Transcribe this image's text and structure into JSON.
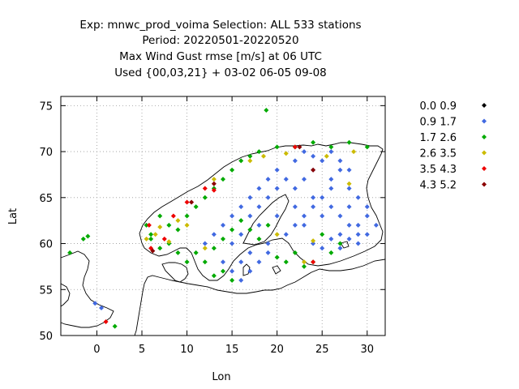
{
  "chart_data": {
    "type": "scatter",
    "title_lines": [
      "Exp: mnwc_prod_voima   Selection: ALL    533 stations",
      "Period: 20220501-20220520",
      "Max Wind Gust rmse [m/s] at  06 UTC",
      "Used {00,03,21} + 03-02 06-05 09-08"
    ],
    "xlabel": "Lon",
    "ylabel": "Lat",
    "xlim": [
      -4,
      32
    ],
    "ylim": [
      50,
      76
    ],
    "xticks": [
      0,
      5,
      10,
      15,
      20,
      25,
      30
    ],
    "xtick_labels": [
      "0",
      "5",
      "10",
      "15",
      "20",
      "25",
      "30"
    ],
    "yticks": [
      50,
      55,
      60,
      65,
      70,
      75
    ],
    "ytick_labels": [
      "50",
      "55",
      "60",
      "65",
      "70",
      "75"
    ],
    "grid": true,
    "legend_position": "right",
    "series": [
      {
        "name": "0.0 0.9",
        "color": "#000000",
        "points": []
      },
      {
        "name": "0.9 1.7",
        "color": "#4169e1",
        "points": [
          [
            -0.2,
            53.5
          ],
          [
            0.5,
            53
          ],
          [
            15,
            60
          ],
          [
            16,
            61
          ],
          [
            17,
            59
          ],
          [
            18,
            62
          ],
          [
            19,
            60
          ],
          [
            20,
            63
          ],
          [
            21,
            61
          ],
          [
            22,
            64
          ],
          [
            23,
            62
          ],
          [
            24,
            65
          ],
          [
            25,
            63
          ],
          [
            26,
            66
          ],
          [
            27,
            61
          ],
          [
            28,
            64
          ],
          [
            29,
            62
          ],
          [
            30,
            63
          ],
          [
            24,
            60
          ],
          [
            25,
            59.5
          ],
          [
            26,
            60.5
          ],
          [
            27,
            59.5
          ],
          [
            28,
            60.5
          ],
          [
            29,
            61
          ],
          [
            22,
            66
          ],
          [
            23,
            67
          ],
          [
            24,
            68
          ],
          [
            25,
            69
          ],
          [
            26,
            67
          ],
          [
            27,
            68
          ],
          [
            28,
            66
          ],
          [
            29,
            65
          ],
          [
            30,
            64
          ],
          [
            21,
            67
          ],
          [
            20,
            66
          ],
          [
            19,
            65
          ],
          [
            18,
            64
          ],
          [
            17,
            63
          ],
          [
            16,
            64
          ],
          [
            15,
            63
          ],
          [
            14,
            62
          ],
          [
            13,
            61
          ],
          [
            12,
            60
          ],
          [
            16,
            58
          ],
          [
            15,
            57
          ],
          [
            14,
            58
          ],
          [
            17,
            57
          ],
          [
            18,
            58
          ],
          [
            19,
            59
          ],
          [
            16,
            56
          ],
          [
            22,
            62
          ],
          [
            23,
            63
          ],
          [
            24,
            64
          ],
          [
            25,
            65
          ],
          [
            26,
            64
          ],
          [
            27,
            63
          ],
          [
            28,
            62
          ],
          [
            29,
            60
          ],
          [
            30,
            61
          ],
          [
            31,
            62
          ],
          [
            20,
            68
          ],
          [
            19,
            67
          ],
          [
            18,
            66
          ],
          [
            17,
            65
          ],
          [
            22,
            69
          ],
          [
            23,
            70
          ],
          [
            24,
            69.5
          ],
          [
            26,
            70
          ],
          [
            27,
            69
          ],
          [
            28,
            68
          ]
        ]
      },
      {
        "name": "1.7 2.6",
        "color": "#00aa00",
        "points": [
          [
            -3,
            59
          ],
          [
            -1.5,
            60.5
          ],
          [
            -1,
            60.8
          ],
          [
            2,
            51
          ],
          [
            18.8,
            74.5
          ],
          [
            5.5,
            62
          ],
          [
            6,
            61
          ],
          [
            7,
            63
          ],
          [
            8,
            62
          ],
          [
            9,
            61.5
          ],
          [
            10,
            63
          ],
          [
            11,
            64
          ],
          [
            12,
            65
          ],
          [
            13,
            66
          ],
          [
            14,
            67
          ],
          [
            15,
            68
          ],
          [
            16,
            69
          ],
          [
            17,
            69.5
          ],
          [
            18,
            70
          ],
          [
            20,
            70.5
          ],
          [
            22,
            70.5
          ],
          [
            24,
            71
          ],
          [
            26,
            70.5
          ],
          [
            28,
            71
          ],
          [
            30,
            70.5
          ],
          [
            14,
            57
          ],
          [
            15,
            56
          ],
          [
            13,
            56.5
          ],
          [
            12,
            58
          ],
          [
            11,
            59
          ],
          [
            10,
            58
          ],
          [
            20,
            58.5
          ],
          [
            21,
            58
          ],
          [
            22,
            59
          ],
          [
            23,
            57.5
          ],
          [
            24,
            58
          ],
          [
            26,
            59
          ],
          [
            27,
            60
          ],
          [
            25,
            61
          ],
          [
            19,
            62
          ],
          [
            18,
            60.5
          ],
          [
            17,
            61.5
          ],
          [
            16,
            62.5
          ],
          [
            15,
            61.5
          ],
          [
            14,
            60.5
          ],
          [
            13,
            59.5
          ],
          [
            8,
            60
          ],
          [
            9,
            59
          ],
          [
            7,
            59.5
          ],
          [
            6,
            60.5
          ]
        ]
      },
      {
        "name": "2.6 3.5",
        "color": "#ccbb00",
        "points": [
          [
            5.5,
            60.5
          ],
          [
            6.5,
            61
          ],
          [
            7,
            61.8
          ],
          [
            8,
            60.2
          ],
          [
            9,
            62.5
          ],
          [
            10,
            62
          ],
          [
            12,
            59.5
          ],
          [
            17,
            69
          ],
          [
            18.5,
            69.5
          ],
          [
            21,
            69.8
          ],
          [
            23,
            58
          ],
          [
            24,
            60.3
          ],
          [
            25.5,
            69.5
          ],
          [
            28,
            66.5
          ],
          [
            28.5,
            70
          ],
          [
            13,
            67
          ],
          [
            20,
            61
          ]
        ]
      },
      {
        "name": "3.5 4.3",
        "color": "#ee0000",
        "points": [
          [
            1,
            51.5
          ],
          [
            5.8,
            62
          ],
          [
            6,
            59.5
          ],
          [
            7.5,
            60.5
          ],
          [
            8.5,
            63
          ],
          [
            10,
            64.5
          ],
          [
            12,
            66
          ],
          [
            13,
            65.8
          ],
          [
            22,
            70.5
          ],
          [
            24,
            58
          ]
        ]
      },
      {
        "name": "4.3 5.2",
        "color": "#8b0000",
        "points": [
          [
            6.2,
            59.2
          ],
          [
            10.5,
            64.5
          ],
          [
            13,
            66.5
          ],
          [
            22.5,
            70.5
          ],
          [
            24,
            68
          ]
        ]
      }
    ]
  }
}
